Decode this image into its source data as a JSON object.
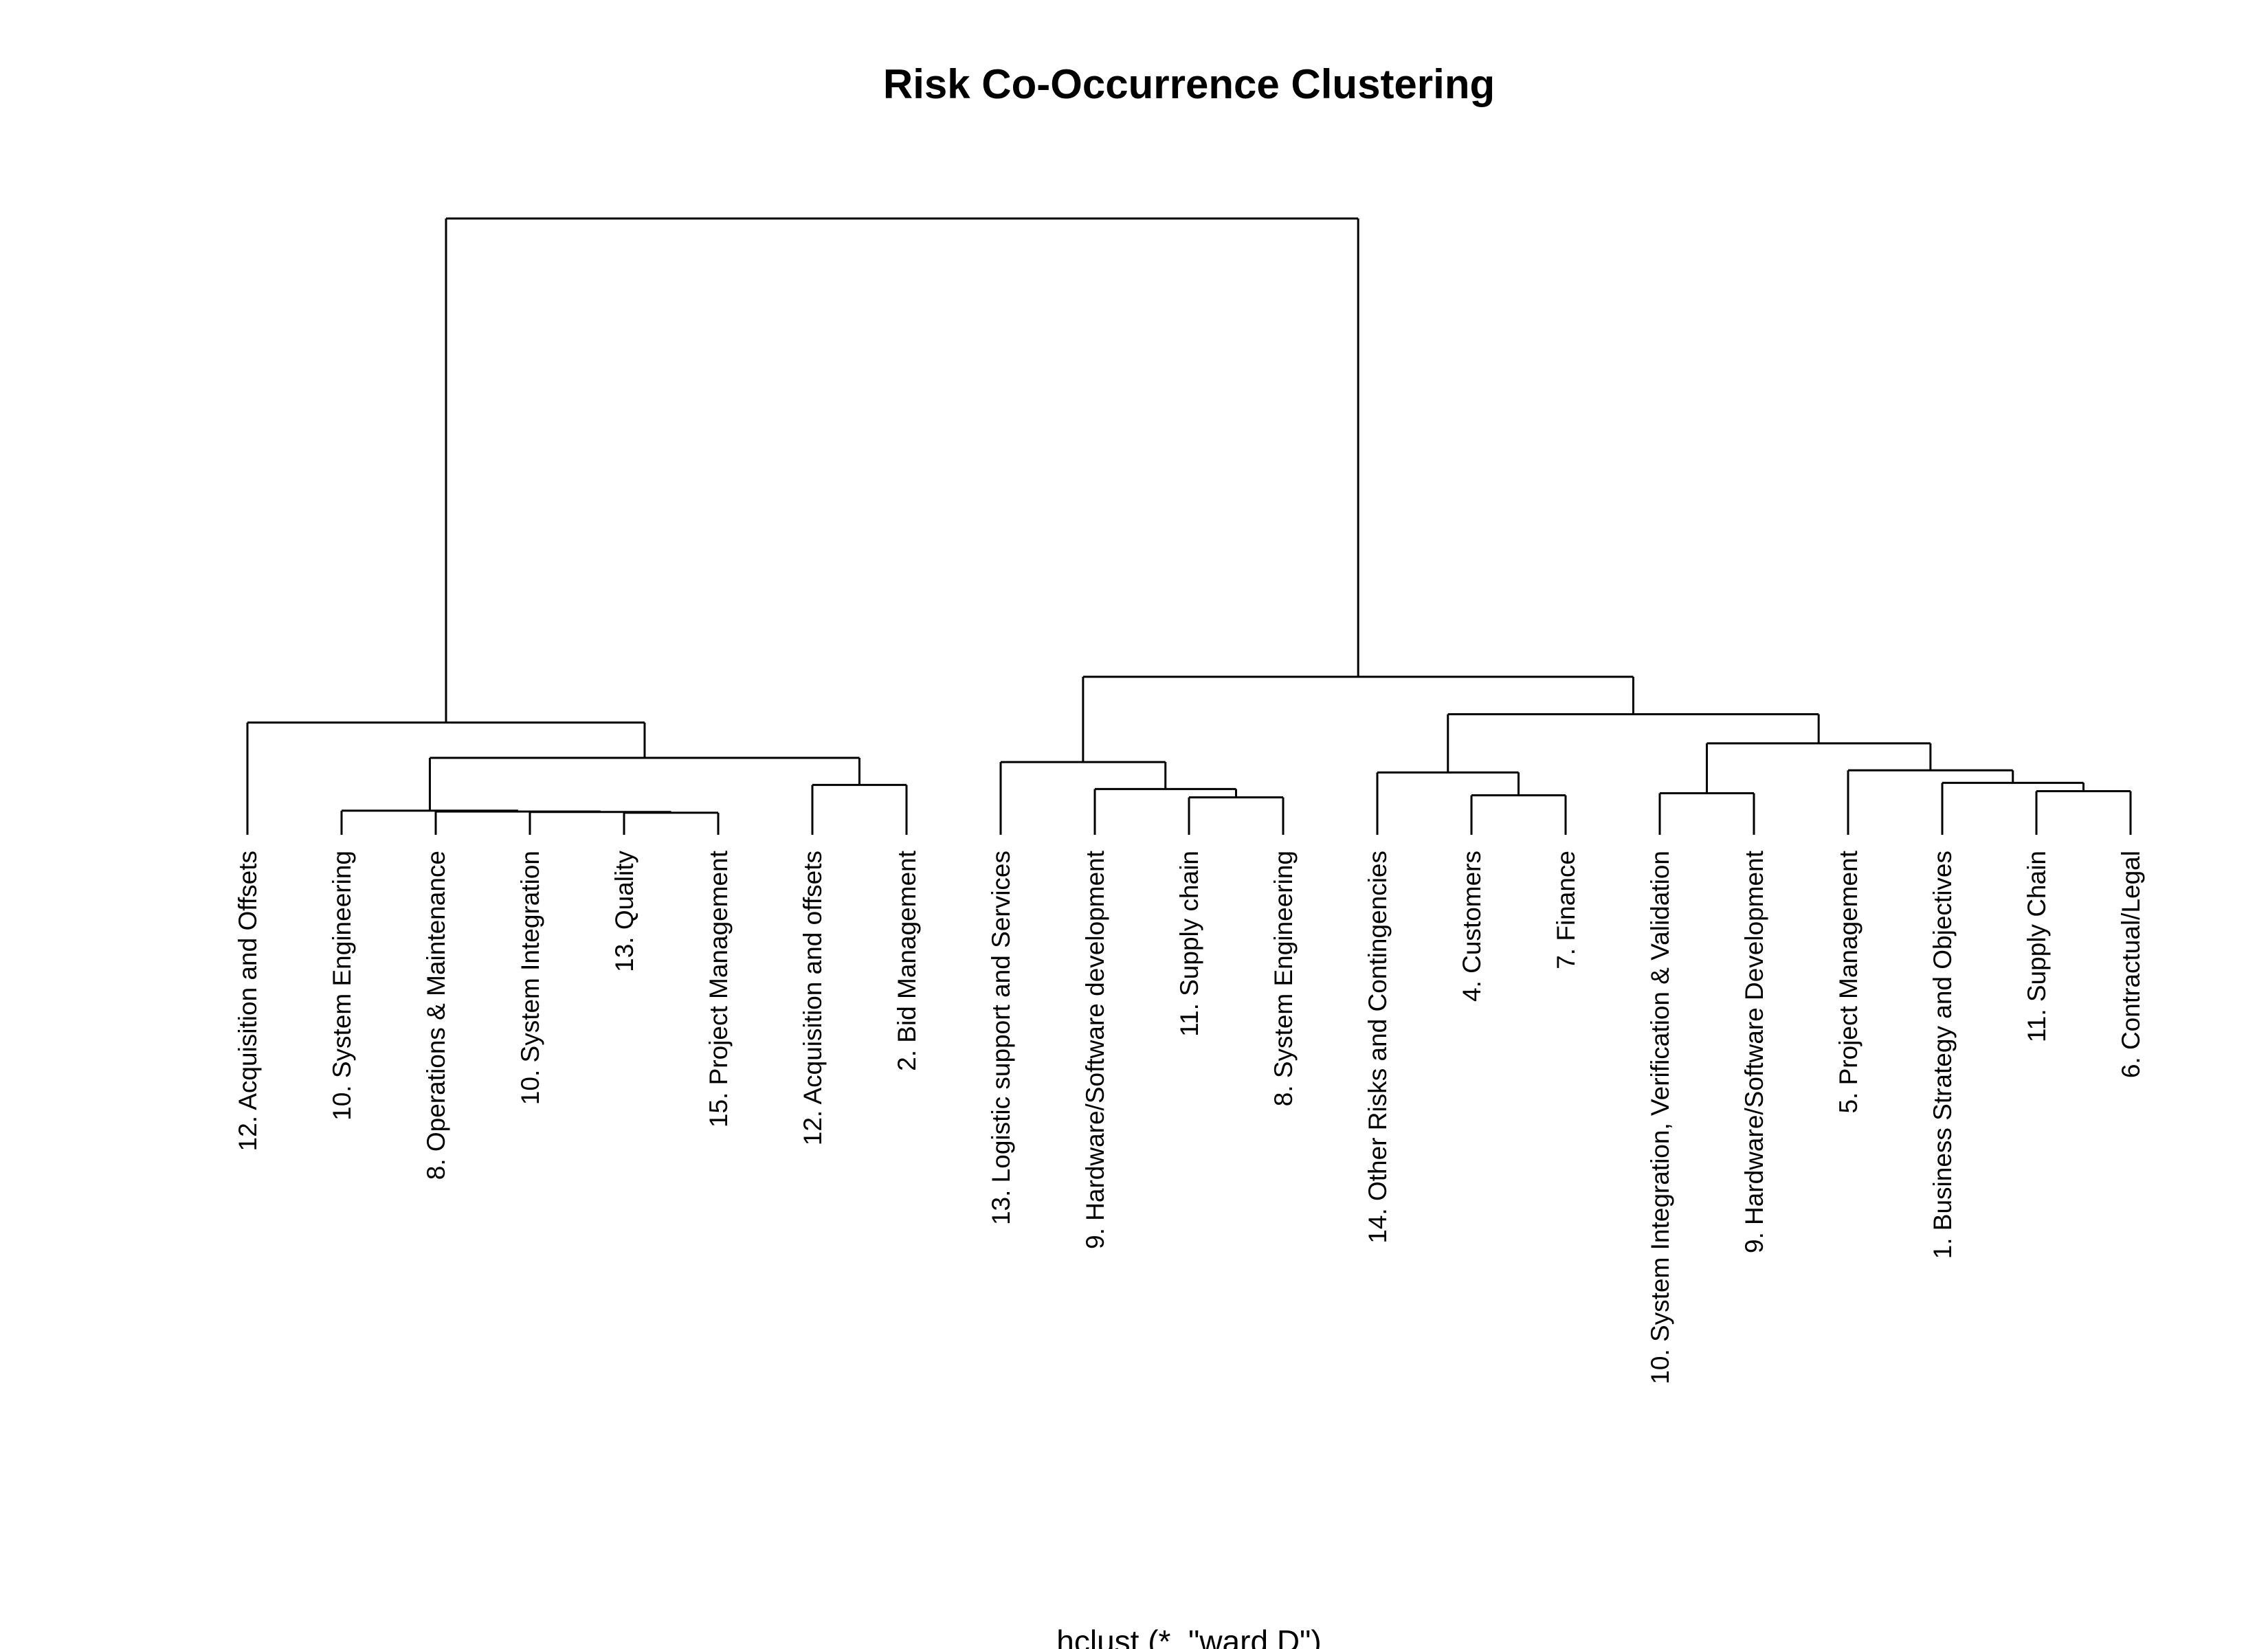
{
  "chart_data": {
    "type": "dendrogram",
    "title": "Risk Co-Occurrence Clustering",
    "subtitle": "hclust (*, \"ward.D\")",
    "xlabel": "",
    "ylabel": "",
    "axes_shown": false,
    "height_scale": "arbitrary units (no axis shown)",
    "leaves": [
      "12. Acquisition and Offsets",
      "10. System Engineering",
      "8. Operations & Maintenance",
      "10. System Integration",
      "13. Quality",
      "15. Project Management",
      "12. Acquisition and offsets",
      "2. Bid Management",
      "13. Logistic support and Services",
      "9. Hardware/Software development",
      "11. Supply chain",
      "8. System Engineering",
      "14. Other Risks and Contingencies",
      "4. Customers",
      "7. Finance",
      "10. System Integration, Verification & Validation",
      "9. Hardware/Software Development",
      "5. Project Management",
      "1. Business Strategy and Objectives",
      "11. Supply Chain",
      "6. Contractual/Legal"
    ],
    "leaf_height": 0.0,
    "merges": [
      {
        "left": "L4",
        "right": "L5",
        "height": 0.53
      },
      {
        "left": "L3",
        "right": "M1",
        "height": 0.55
      },
      {
        "left": "L2",
        "right": "M2",
        "height": 0.56
      },
      {
        "left": "L1",
        "right": "M3",
        "height": 0.58
      },
      {
        "left": "L7",
        "right": "L8",
        "height": 1.2
      },
      {
        "left": "M4",
        "right": "M5",
        "height": 1.85
      },
      {
        "left": "L0",
        "right": "M6",
        "height": 2.7
      },
      {
        "left": "L11",
        "right": "L10",
        "height": 0.9
      },
      {
        "left": "L9",
        "right": "M8",
        "height": 1.1
      },
      {
        "left": "L8_13",
        "right": "M9",
        "height": 1.75
      },
      {
        "left": "L13",
        "right": "L14",
        "height": 0.95
      },
      {
        "left": "L12",
        "right": "M11",
        "height": 1.5
      },
      {
        "left": "L15",
        "right": "L16",
        "height": 1.0
      },
      {
        "left": "L19",
        "right": "L20",
        "height": 1.05
      },
      {
        "left": "L18",
        "right": "M14",
        "height": 1.25
      },
      {
        "left": "L17",
        "right": "M15",
        "height": 1.55
      },
      {
        "left": "M13",
        "right": "M16",
        "height": 2.2
      },
      {
        "left": "M12",
        "right": "M17",
        "height": 2.9
      },
      {
        "left": "M10",
        "right": "M18",
        "height": 3.8
      },
      {
        "left": "M7",
        "right": "M19",
        "height": 12.0
      }
    ]
  }
}
